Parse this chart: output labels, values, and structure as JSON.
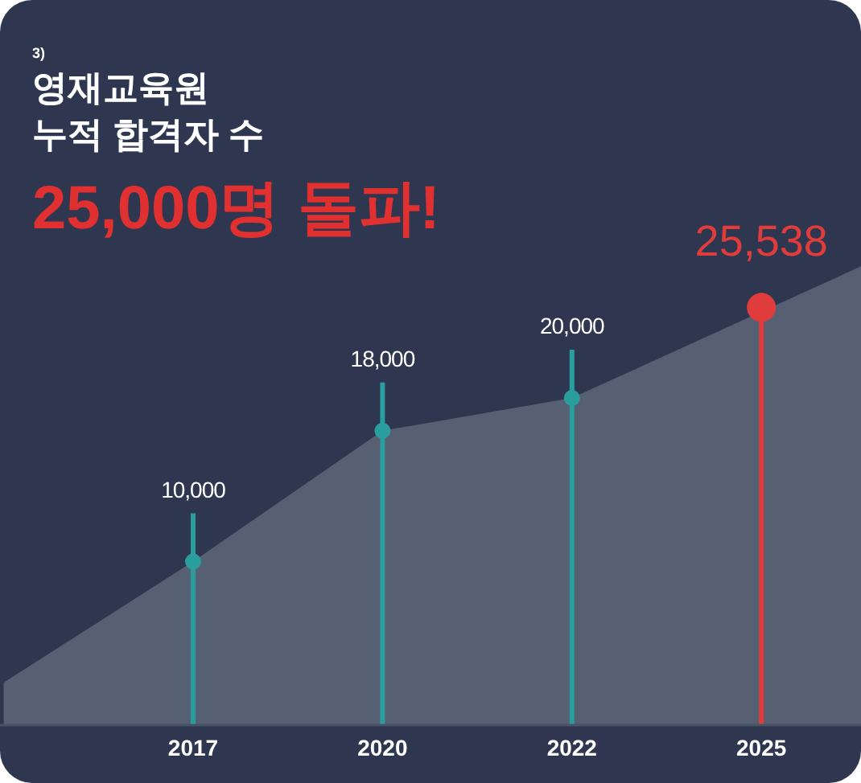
{
  "chart_data": {
    "type": "lollipop",
    "title": "영재교육원\n누적 합격자 수",
    "subtitle": "25,000명 돌파!",
    "annotations": [
      "3)"
    ],
    "categories": [
      null,
      "2017",
      "2020",
      "2022",
      "2025",
      null
    ],
    "series": [
      {
        "type": "area",
        "color": "#575f72",
        "values": [
          2600,
          10000,
          18000,
          20000,
          null,
          30550
        ]
      },
      {
        "color": "#2a9d9f",
        "colors": [
          null,
          "#2a9d9f",
          "#2a9d9f",
          "#2a9d9f",
          "#e03c3c",
          null
        ],
        "values": [
          null,
          10000,
          18000,
          20000,
          25538,
          null
        ],
        "sizes": [
          null,
          0.31,
          0.31,
          0.31,
          1,
          null
        ],
        "value_labels": [
          null,
          "10,000",
          "18,000",
          "20,000",
          "25,538",
          null
        ]
      }
    ]
  }
}
